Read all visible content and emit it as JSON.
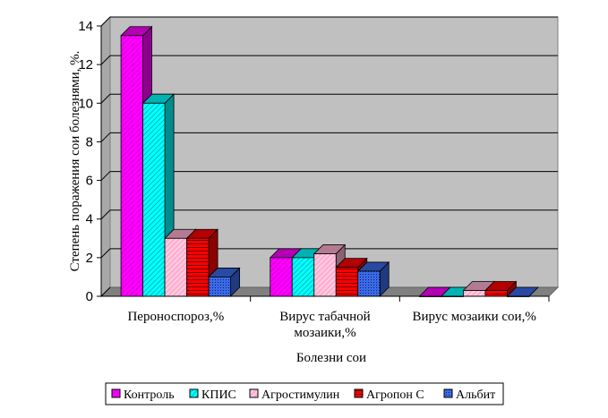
{
  "chart_data": {
    "type": "bar",
    "title": "",
    "xlabel": "Болезни сои",
    "ylabel": "Степень поражения сои болезнями, %.",
    "ylim": [
      0,
      14
    ],
    "yticks": [
      "0",
      "2",
      "4",
      "6",
      "8",
      "10",
      "12",
      "14"
    ],
    "grid": true,
    "legend_position": "bottom",
    "categories": [
      [
        "Пероноспороз,%"
      ],
      [
        "Вирус табачной",
        "мозаики,%"
      ],
      [
        "Вирус мозаики сои,%"
      ]
    ],
    "series": [
      {
        "name": "Контроль",
        "color": "#ff00ff",
        "values": [
          13.5,
          2.0,
          0
        ]
      },
      {
        "name": "КПИС",
        "color": "#00ffff",
        "values": [
          10,
          2.0,
          0
        ]
      },
      {
        "name": "Агростимулин",
        "color": "#ffb0d0",
        "values": [
          3,
          2.2,
          0.3
        ]
      },
      {
        "name": "Агропон С",
        "color": "#ff0000",
        "values": [
          3,
          1.5,
          0.3
        ]
      },
      {
        "name": "Альбит",
        "color": "#3a6ae8",
        "values": [
          1,
          1.3,
          0
        ]
      }
    ]
  }
}
